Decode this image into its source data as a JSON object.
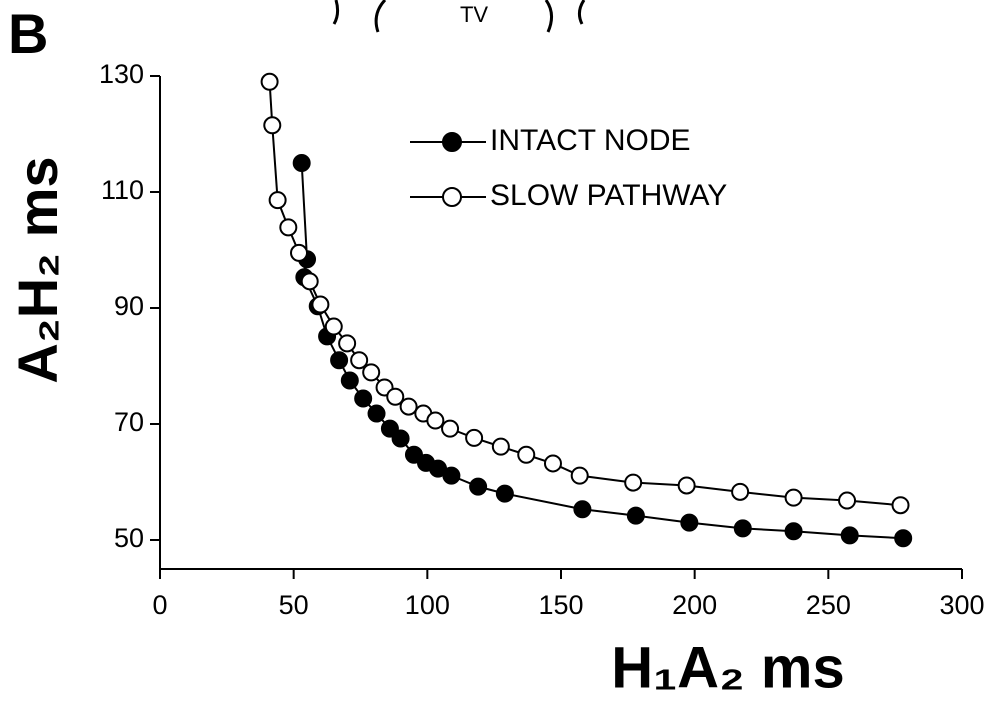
{
  "chart_data": {
    "type": "line",
    "panel_label": "B",
    "annotation": "TV",
    "x_label": "H₁A₂ ms",
    "y_label": "A₂H₂ ms",
    "xlim": [
      0,
      300
    ],
    "xticks": [
      0,
      50,
      100,
      150,
      200,
      250,
      300
    ],
    "ylim": [
      45,
      130
    ],
    "yticks": [
      50,
      70,
      90,
      110,
      130
    ],
    "legend": "upper center",
    "series": [
      {
        "name": "INTACT NODE",
        "color": "#000000",
        "marker": "filled",
        "x": [
          53,
          55,
          54,
          59,
          62.5,
          67,
          71,
          76,
          81,
          86,
          90,
          95,
          99.5,
          104,
          109,
          119,
          129,
          158,
          178,
          198,
          218,
          237,
          258,
          278
        ],
        "values": [
          115,
          98.4,
          95.3,
          90.3,
          85.1,
          81,
          77.5,
          74.4,
          71.8,
          69.2,
          67.5,
          64.7,
          63.3,
          62.3,
          61.1,
          59.2,
          58,
          55.3,
          54.2,
          53,
          52,
          51.5,
          50.8,
          50.3
        ]
      },
      {
        "name": "SLOW PATHWAY",
        "color": "#000000",
        "marker": "open",
        "x": [
          41,
          42,
          44,
          48,
          52,
          56,
          60,
          65,
          70,
          74.5,
          79,
          84,
          88,
          93,
          98.5,
          103,
          108.5,
          117.5,
          127.5,
          137,
          147,
          157,
          177,
          197,
          217,
          237,
          257,
          277
        ],
        "values": [
          129,
          121.5,
          108.6,
          103.9,
          99.5,
          94.6,
          90.6,
          86.8,
          83.9,
          81,
          78.9,
          76.3,
          74.7,
          73,
          71.8,
          70.6,
          69.2,
          67.6,
          66.1,
          64.7,
          63.2,
          61.1,
          59.9,
          59.4,
          58.3,
          57.3,
          56.8,
          56
        ]
      }
    ]
  }
}
